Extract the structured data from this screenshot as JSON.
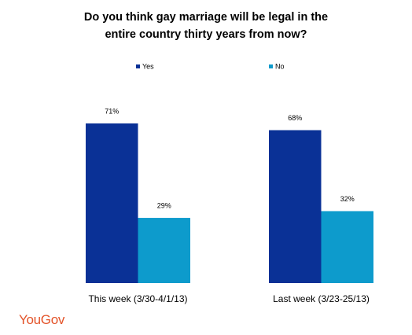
{
  "chart_data": {
    "type": "bar",
    "title": "Do you think gay marriage will be legal in the entire country thirty years from now?",
    "categories": [
      "This week (3/30-4/1/13)",
      "Last week (3/23-25/13)"
    ],
    "series": [
      {
        "name": "Yes",
        "color": "#0a3196",
        "values": [
          71,
          68
        ],
        "value_labels": [
          "71%",
          "68%"
        ]
      },
      {
        "name": "No",
        "color": "#0d9bcc",
        "values": [
          29,
          32
        ],
        "value_labels": [
          "29%",
          "32%"
        ]
      }
    ],
    "logo": "YouGov"
  }
}
